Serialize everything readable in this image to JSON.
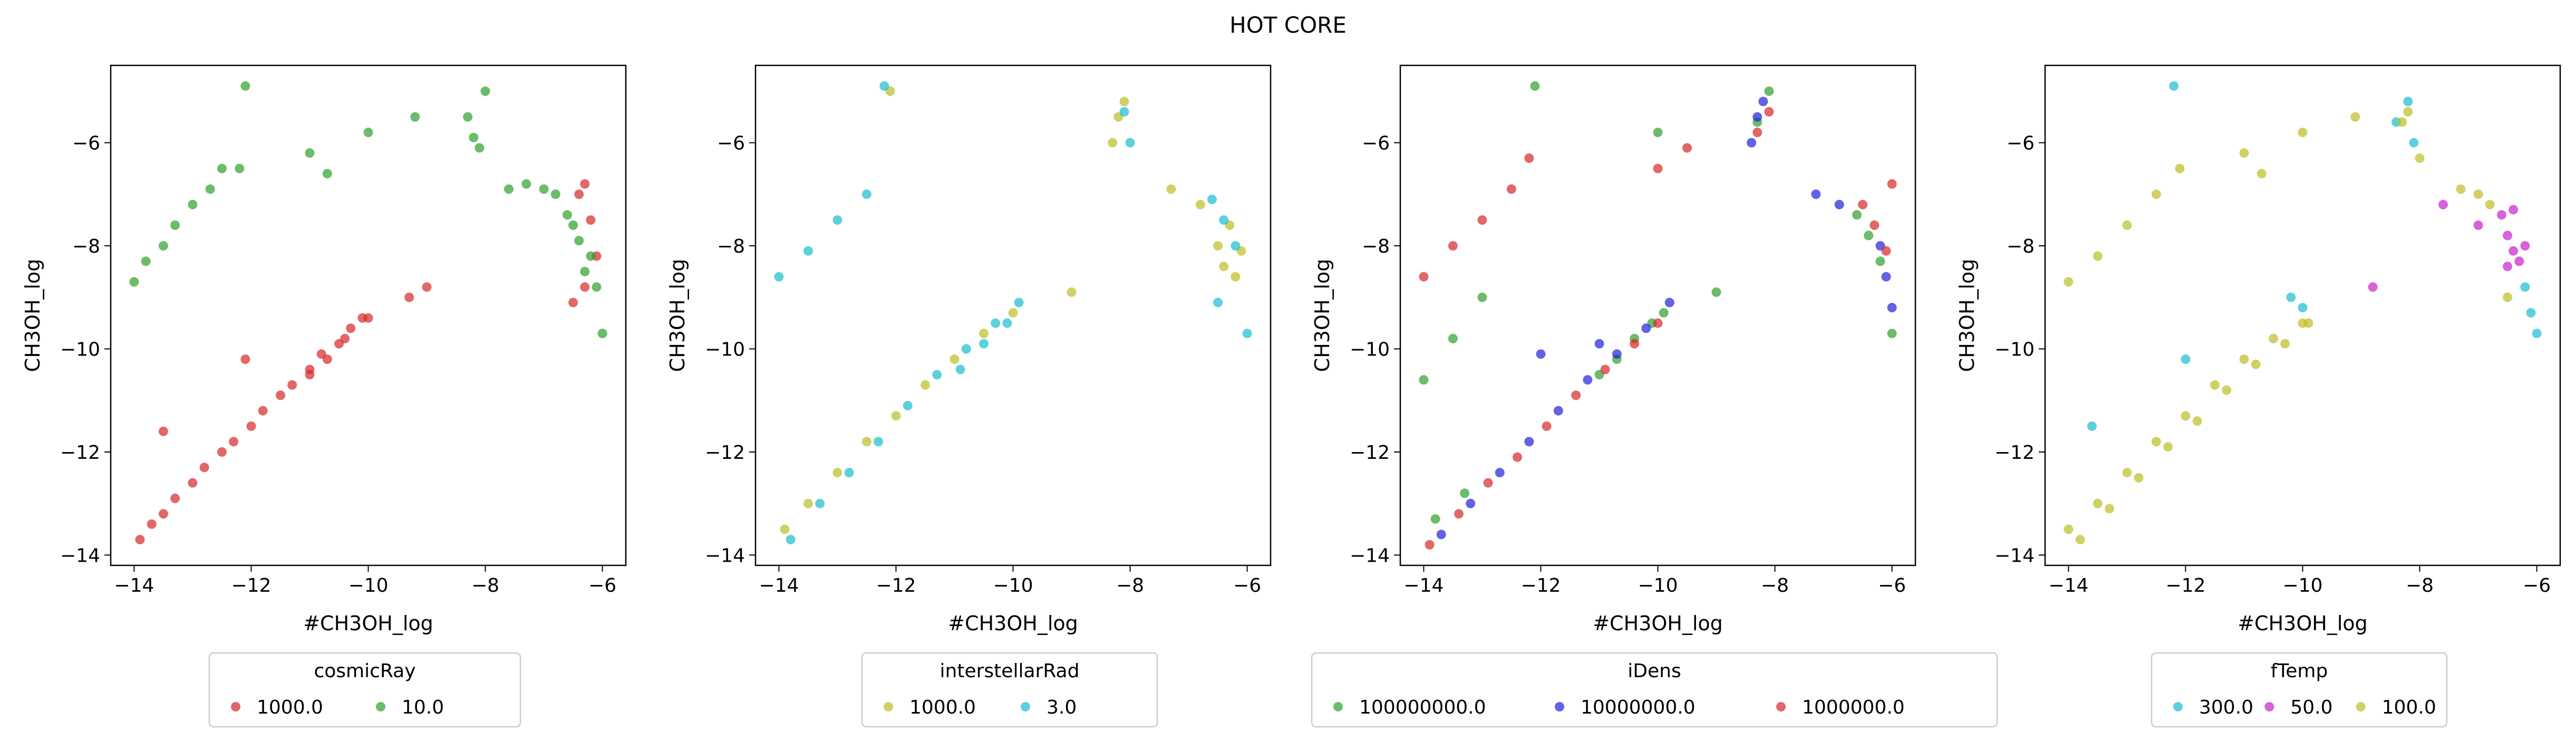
{
  "figure": {
    "title": "HOT CORE"
  },
  "chart_data": [
    {
      "type": "scatter",
      "xlabel": "#CH3OH_log",
      "ylabel": "CH3OH_log",
      "xlim": [
        -14.4,
        -5.6
      ],
      "ylim": [
        -14.2,
        -4.5
      ],
      "xticks": [
        -14,
        -12,
        -10,
        -8,
        -6
      ],
      "yticks": [
        -14,
        -12,
        -10,
        -8,
        -6
      ],
      "legend": {
        "title": "cosmicRay",
        "placement": "below",
        "columns": 2
      },
      "series": [
        {
          "name": "1000.0",
          "color": "#d62728",
          "x": [
            -13.9,
            -13.7,
            -13.5,
            -13.3,
            -13.0,
            -12.8,
            -12.5,
            -12.3,
            -12.0,
            -11.8,
            -11.5,
            -11.3,
            -11.0,
            -10.8,
            -10.5,
            -10.3,
            -10.0,
            -11.0,
            -10.7,
            -10.4,
            -10.1,
            -13.5,
            -12.1,
            -9.3,
            -9.0,
            -6.3,
            -6.2,
            -6.1,
            -6.3,
            -6.4,
            -6.5
          ],
          "y": [
            -13.7,
            -13.4,
            -13.2,
            -12.9,
            -12.6,
            -12.3,
            -12.0,
            -11.8,
            -11.5,
            -11.2,
            -10.9,
            -10.7,
            -10.4,
            -10.1,
            -9.9,
            -9.6,
            -9.4,
            -10.5,
            -10.2,
            -9.8,
            -9.4,
            -11.6,
            -10.2,
            -9.0,
            -8.8,
            -6.8,
            -7.5,
            -8.2,
            -8.8,
            -7.0,
            -9.1
          ]
        },
        {
          "name": "10.0",
          "color": "#2ca02c",
          "x": [
            -14.0,
            -13.8,
            -13.5,
            -13.3,
            -13.0,
            -12.7,
            -12.5,
            -12.2,
            -12.1,
            -11.0,
            -10.7,
            -10.0,
            -9.2,
            -8.3,
            -8.2,
            -8.1,
            -8.0,
            -7.6,
            -7.3,
            -7.0,
            -6.8,
            -6.6,
            -6.4,
            -6.2,
            -6.1,
            -6.0,
            -6.3,
            -6.5
          ],
          "y": [
            -8.7,
            -8.3,
            -8.0,
            -7.6,
            -7.2,
            -6.9,
            -6.5,
            -6.5,
            -4.9,
            -6.2,
            -6.6,
            -5.8,
            -5.5,
            -5.5,
            -5.9,
            -6.1,
            -5.0,
            -6.9,
            -6.8,
            -6.9,
            -7.0,
            -7.4,
            -7.9,
            -8.2,
            -8.8,
            -9.7,
            -8.5,
            -7.6
          ]
        }
      ]
    },
    {
      "type": "scatter",
      "xlabel": "#CH3OH_log",
      "ylabel": "CH3OH_log",
      "xlim": [
        -14.4,
        -5.6
      ],
      "ylim": [
        -14.2,
        -4.5
      ],
      "xticks": [
        -14,
        -12,
        -10,
        -8,
        -6
      ],
      "yticks": [
        -14,
        -12,
        -10,
        -8,
        -6
      ],
      "legend": {
        "title": "interstellarRad",
        "placement": "below",
        "columns": 2
      },
      "series": [
        {
          "name": "1000.0",
          "color": "#bcbd22",
          "x": [
            -13.9,
            -13.5,
            -13.0,
            -12.5,
            -12.0,
            -11.5,
            -11.0,
            -10.5,
            -10.0,
            -12.1,
            -9.0,
            -8.3,
            -8.2,
            -8.1,
            -7.3,
            -6.8,
            -6.5,
            -6.4,
            -6.3,
            -6.2,
            -6.1
          ],
          "y": [
            -13.5,
            -13.0,
            -12.4,
            -11.8,
            -11.3,
            -10.7,
            -10.2,
            -9.7,
            -9.3,
            -5.0,
            -8.9,
            -6.0,
            -5.5,
            -5.2,
            -6.9,
            -7.2,
            -8.0,
            -8.4,
            -7.6,
            -8.6,
            -8.1
          ]
        },
        {
          "name": "3.0",
          "color": "#17becf",
          "x": [
            -13.8,
            -13.3,
            -12.8,
            -12.3,
            -11.8,
            -11.3,
            -10.8,
            -10.3,
            -9.9,
            -10.9,
            -10.5,
            -10.1,
            -14.0,
            -13.5,
            -13.0,
            -12.5,
            -12.2,
            -8.1,
            -8.0,
            -6.6,
            -6.4,
            -6.2,
            -6.0,
            -6.5
          ],
          "y": [
            -13.7,
            -13.0,
            -12.4,
            -11.8,
            -11.1,
            -10.5,
            -10.0,
            -9.5,
            -9.1,
            -10.4,
            -9.9,
            -9.5,
            -8.6,
            -8.1,
            -7.5,
            -7.0,
            -4.9,
            -5.4,
            -6.0,
            -7.1,
            -7.5,
            -8.0,
            -9.7,
            -9.1
          ]
        }
      ]
    },
    {
      "type": "scatter",
      "xlabel": "#CH3OH_log",
      "ylabel": "CH3OH_log",
      "xlim": [
        -14.4,
        -5.6
      ],
      "ylim": [
        -14.2,
        -4.5
      ],
      "xticks": [
        -14,
        -12,
        -10,
        -8,
        -6
      ],
      "yticks": [
        -14,
        -12,
        -10,
        -8,
        -6
      ],
      "legend": {
        "title": "iDens",
        "placement": "below",
        "columns": 3
      },
      "series": [
        {
          "name": "100000000.0",
          "color": "#2ca02c",
          "x": [
            -14.0,
            -13.5,
            -13.0,
            -12.1,
            -11.0,
            -10.7,
            -10.4,
            -10.1,
            -9.9,
            -10.0,
            -9.0,
            -8.3,
            -8.1,
            -6.6,
            -6.4,
            -6.2,
            -6.0,
            -13.8,
            -13.3
          ],
          "y": [
            -10.6,
            -9.8,
            -9.0,
            -4.9,
            -10.5,
            -10.2,
            -9.8,
            -9.5,
            -9.3,
            -5.8,
            -8.9,
            -5.6,
            -5.0,
            -7.4,
            -7.8,
            -8.3,
            -9.7,
            -13.3,
            -12.8
          ]
        },
        {
          "name": "10000000.0",
          "color": "#1f1fd6",
          "x": [
            -13.7,
            -13.2,
            -12.7,
            -12.2,
            -11.7,
            -11.2,
            -10.7,
            -10.2,
            -9.8,
            -12.0,
            -11.0,
            -8.4,
            -8.3,
            -8.2,
            -7.3,
            -6.9,
            -6.1,
            -6.0,
            -6.2
          ],
          "y": [
            -13.6,
            -13.0,
            -12.4,
            -11.8,
            -11.2,
            -10.6,
            -10.1,
            -9.6,
            -9.1,
            -10.1,
            -9.9,
            -6.0,
            -5.5,
            -5.2,
            -7.0,
            -7.2,
            -8.6,
            -9.2,
            -8.0
          ]
        },
        {
          "name": "1000000.0",
          "color": "#d62728",
          "x": [
            -13.9,
            -13.4,
            -12.9,
            -12.4,
            -11.9,
            -11.4,
            -10.9,
            -10.4,
            -10.0,
            -14.0,
            -13.5,
            -13.0,
            -12.5,
            -12.2,
            -10.0,
            -9.5,
            -8.3,
            -8.1,
            -6.5,
            -6.3,
            -6.1,
            -6.0
          ],
          "y": [
            -13.8,
            -13.2,
            -12.6,
            -12.1,
            -11.5,
            -10.9,
            -10.4,
            -9.9,
            -9.5,
            -8.6,
            -8.0,
            -7.5,
            -6.9,
            -6.3,
            -6.5,
            -6.1,
            -5.8,
            -5.4,
            -7.2,
            -7.6,
            -8.1,
            -6.8
          ]
        }
      ]
    },
    {
      "type": "scatter",
      "xlabel": "#CH3OH_log",
      "ylabel": "CH3OH_log",
      "xlim": [
        -14.4,
        -5.6
      ],
      "ylim": [
        -14.2,
        -4.5
      ],
      "xticks": [
        -14,
        -12,
        -10,
        -8,
        -6
      ],
      "yticks": [
        -14,
        -12,
        -10,
        -8,
        -6
      ],
      "legend": {
        "title": "fTemp",
        "placement": "below",
        "columns": 3
      },
      "series": [
        {
          "name": "300.0",
          "color": "#17becf",
          "x": [
            -13.6,
            -12.2,
            -12.0,
            -10.2,
            -10.0,
            -8.4,
            -8.2,
            -8.1,
            -6.1,
            -6.0,
            -6.2
          ],
          "y": [
            -11.5,
            -4.9,
            -10.2,
            -9.0,
            -9.2,
            -5.6,
            -5.2,
            -6.0,
            -9.3,
            -9.7,
            -8.8
          ]
        },
        {
          "name": "50.0",
          "color": "#c71fc7",
          "x": [
            -8.8,
            -7.6,
            -7.0,
            -6.6,
            -6.5,
            -6.4,
            -6.3,
            -6.2,
            -6.4,
            -6.5
          ],
          "y": [
            -8.8,
            -7.2,
            -7.6,
            -7.4,
            -7.8,
            -8.1,
            -8.3,
            -8.0,
            -7.3,
            -8.4
          ]
        },
        {
          "name": "100.0",
          "color": "#bcbd22",
          "x": [
            -14.0,
            -13.5,
            -13.0,
            -12.5,
            -12.0,
            -11.5,
            -11.0,
            -10.5,
            -10.0,
            -13.8,
            -13.3,
            -12.8,
            -12.3,
            -11.8,
            -11.3,
            -10.8,
            -10.3,
            -9.9,
            -14.0,
            -13.5,
            -13.0,
            -12.5,
            -12.1,
            -11.0,
            -10.7,
            -10.0,
            -9.1,
            -8.3,
            -8.2,
            -8.0,
            -7.3,
            -7.0,
            -6.8,
            -6.5
          ],
          "y": [
            -13.5,
            -13.0,
            -12.4,
            -11.8,
            -11.3,
            -10.7,
            -10.2,
            -9.8,
            -9.5,
            -13.7,
            -13.1,
            -12.5,
            -11.9,
            -11.4,
            -10.8,
            -10.3,
            -9.9,
            -9.5,
            -8.7,
            -8.2,
            -7.6,
            -7.0,
            -6.5,
            -6.2,
            -6.6,
            -5.8,
            -5.5,
            -5.6,
            -5.4,
            -6.3,
            -6.9,
            -7.0,
            -7.2,
            -9.0
          ]
        }
      ]
    }
  ]
}
